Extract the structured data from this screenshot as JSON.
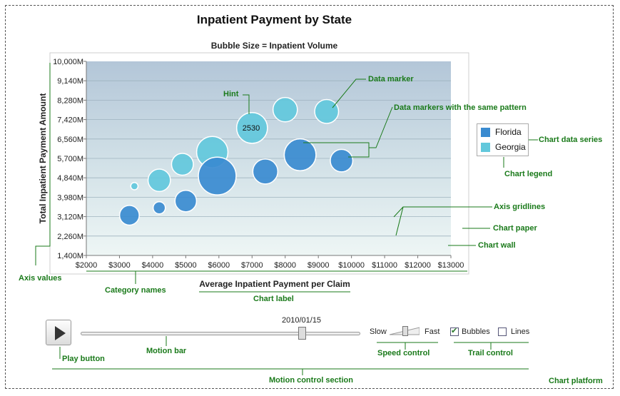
{
  "colors": {
    "florida": "#3a8bd0",
    "georgia": "#62c8dc",
    "annotation": "#1a7a1a"
  },
  "chart_data": {
    "type": "bubble",
    "title": "Inpatient Payment by State",
    "subtitle": "Bubble Size = Inpatient Volume",
    "xlabel": "Average Inpatient Payment per Claim",
    "ylabel": "Total Inpatient Payment Amount",
    "xlim": [
      2000,
      13000
    ],
    "ylim": [
      1400,
      10000
    ],
    "x_ticks": [
      "$2000",
      "$3000",
      "$4000",
      "$5000",
      "$6000",
      "$7000",
      "$8000",
      "$9000",
      "$10000",
      "$11000",
      "$12000",
      "$13000"
    ],
    "y_ticks": [
      "10,000M",
      "9,140M",
      "8,280M",
      "7,420M",
      "6,560M",
      "5,700M",
      "4,840M",
      "3,980M",
      "3,120M",
      "2,260M",
      "1,400M"
    ],
    "grid": true,
    "legend_position": "right",
    "hint_value": "2530",
    "series": [
      {
        "name": "Florida",
        "color": "#3a8bd0",
        "points": [
          {
            "x": 3300,
            "y": 3180,
            "size": 650
          },
          {
            "x": 4200,
            "y": 3510,
            "size": 250
          },
          {
            "x": 5000,
            "y": 3810,
            "size": 780
          },
          {
            "x": 5950,
            "y": 4920,
            "size": 2400
          },
          {
            "x": 7400,
            "y": 5120,
            "size": 1050
          },
          {
            "x": 8450,
            "y": 5860,
            "size": 1700
          },
          {
            "x": 9700,
            "y": 5600,
            "size": 850
          }
        ]
      },
      {
        "name": "Georgia",
        "color": "#62c8dc",
        "points": [
          {
            "x": 3450,
            "y": 4470,
            "size": 90
          },
          {
            "x": 4200,
            "y": 4730,
            "size": 840
          },
          {
            "x": 4900,
            "y": 5440,
            "size": 800
          },
          {
            "x": 5800,
            "y": 5980,
            "size": 1650
          },
          {
            "x": 7000,
            "y": 7050,
            "size": 1600
          },
          {
            "x": 8000,
            "y": 7860,
            "size": 1000
          },
          {
            "x": 9250,
            "y": 7780,
            "size": 960
          }
        ]
      }
    ]
  },
  "controls": {
    "date": "2010/01/15",
    "progress": 0.79,
    "speed_slow": "Slow",
    "speed_fast": "Fast",
    "speed_value": 0.45,
    "trail_bubbles": "Bubbles",
    "trail_lines": "Lines",
    "bubbles_checked": true,
    "lines_checked": false
  },
  "annotations": {
    "data_marker": "Data marker",
    "hint": "Hint",
    "same_pattern": "Data markers with the same pattern",
    "chart_data_series": "Chart data series",
    "chart_legend": "Chart legend",
    "axis_gridlines": "Axis gridlines",
    "chart_paper": "Chart paper",
    "chart_wall": "Chart wall",
    "axis_values": "Axis values",
    "category_names": "Category names",
    "chart_label": "Chart label",
    "play_button": "Play button",
    "motion_bar": "Motion bar",
    "speed_control": "Speed control",
    "trail_control": "Trail control",
    "motion_control_section": "Motion control section",
    "chart_platform": "Chart platform"
  }
}
